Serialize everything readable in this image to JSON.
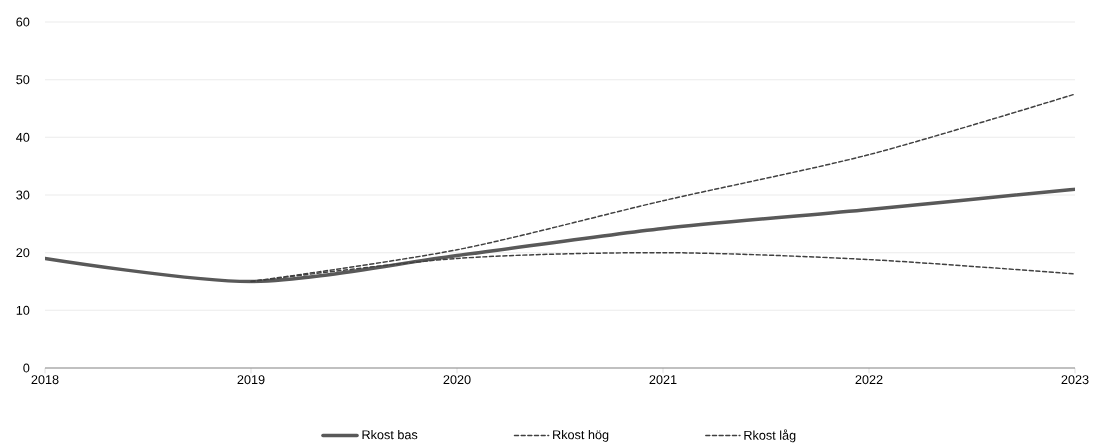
{
  "chart_data": {
    "type": "line",
    "x": [
      2018,
      2019,
      2020,
      2021,
      2022,
      2023
    ],
    "series": [
      {
        "name": "Rkost bas",
        "color": "#595959",
        "line_style": "solid",
        "values": [
          19,
          15,
          19.5,
          24.2,
          27.5,
          31
        ]
      },
      {
        "name": "Rkost hög",
        "color": "#404040",
        "line_style": "dashed",
        "values": [
          null,
          15,
          20.5,
          29,
          37,
          47.5
        ]
      },
      {
        "name": "Rkost låg",
        "color": "#404040",
        "line_style": "dashed",
        "values": [
          null,
          15,
          19,
          20,
          18.8,
          16.3
        ]
      }
    ],
    "xlim": [
      2018,
      2023
    ],
    "xticks": [
      2018,
      2019,
      2020,
      2021,
      2022,
      2023
    ],
    "ylim": [
      0,
      60
    ],
    "yticks": [
      0,
      10,
      20,
      30,
      40,
      50,
      60
    ],
    "grid": "y",
    "legend": "bottom",
    "marker": "none"
  }
}
